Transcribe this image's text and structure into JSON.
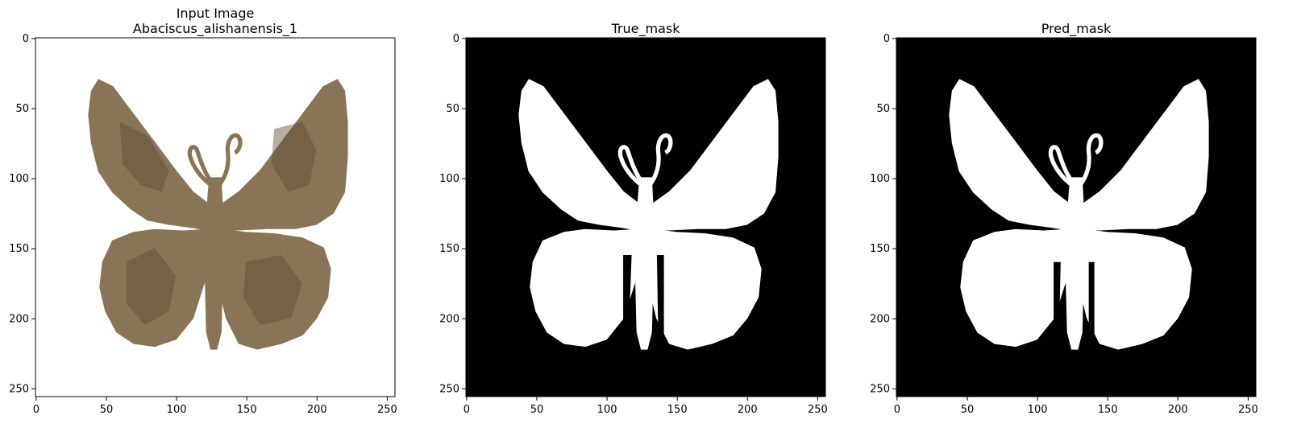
{
  "figure": {
    "panels": [
      {
        "id": "input",
        "title_lines": [
          "Input Image",
          "Abaciscus_alishanensis_1"
        ],
        "kind": "photo",
        "background": "#ffffff",
        "foreground": "#8a7457",
        "xticks": [
          "0",
          "50",
          "100",
          "150",
          "200",
          "250"
        ],
        "yticks": [
          "0",
          "50",
          "100",
          "150",
          "200",
          "250"
        ]
      },
      {
        "id": "true_mask",
        "title_lines": [
          "True_mask"
        ],
        "kind": "mask",
        "background": "#000000",
        "foreground": "#ffffff",
        "xticks": [
          "0",
          "50",
          "100",
          "150",
          "200",
          "250"
        ],
        "yticks": [
          "0",
          "50",
          "100",
          "150",
          "200",
          "250"
        ]
      },
      {
        "id": "pred_mask",
        "title_lines": [
          "Pred_mask"
        ],
        "kind": "mask",
        "background": "#000000",
        "foreground": "#ffffff",
        "xticks": [
          "0",
          "50",
          "100",
          "150",
          "200",
          "250"
        ],
        "yticks": [
          "0",
          "50",
          "100",
          "150",
          "200",
          "250"
        ]
      }
    ],
    "image_size": [
      256,
      256
    ]
  }
}
